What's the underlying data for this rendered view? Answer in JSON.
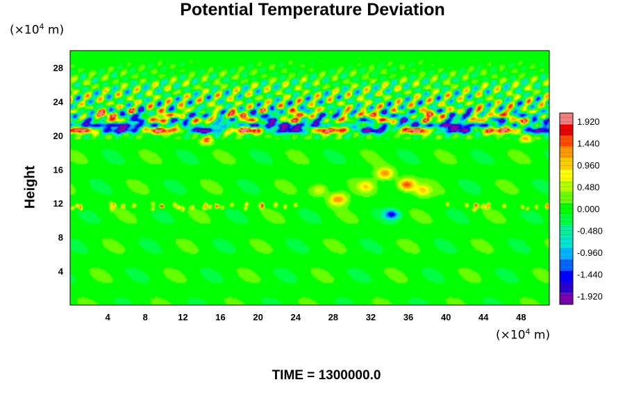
{
  "chart_data": {
    "type": "heatmap",
    "title": "Potential Temperature Deviation",
    "ylabel": "Height",
    "x_unit": {
      "prefix": "(×10",
      "exp": "4",
      "suffix": " m)"
    },
    "y_unit": {
      "prefix": "(×10",
      "exp": "4",
      "suffix": " m)"
    },
    "xlim": [
      0,
      51
    ],
    "ylim": [
      0,
      30
    ],
    "x_ticks": [
      4,
      8,
      12,
      16,
      20,
      24,
      28,
      32,
      36,
      40,
      44,
      48
    ],
    "y_ticks": [
      4,
      8,
      12,
      16,
      20,
      24,
      28
    ],
    "colorbar": {
      "range": [
        -2.1,
        2.1
      ],
      "tick_values": [
        1.92,
        1.44,
        0.96,
        0.48,
        0.0,
        -0.48,
        -0.96,
        -1.44,
        -1.92
      ],
      "tick_labels": [
        "1.920",
        "1.440",
        "0.960",
        "0.480",
        "0.000",
        "-0.480",
        "-0.960",
        "-1.440",
        "-1.920"
      ],
      "colors": [
        "#7a00b0",
        "#2a00cc",
        "#0000ff",
        "#0066ff",
        "#00b4ff",
        "#00e6d2",
        "#00f0a0",
        "#00ff44",
        "#00ff00",
        "#66ff00",
        "#b4ff00",
        "#ffff00",
        "#ffcc00",
        "#ff9900",
        "#ff4a00",
        "#ee0000",
        "#f08080"
      ]
    },
    "field_features": [
      {
        "kind": "background",
        "value": 0.0
      },
      {
        "kind": "upper_band",
        "y_range": [
          19.8,
          29
        ],
        "amplitude": 1.5
      },
      {
        "kind": "strong_layer",
        "y": 20.8,
        "amplitude": 2.0
      },
      {
        "kind": "convection",
        "x_center": 34,
        "y_range": [
          11,
          17
        ],
        "amplitude": 1.2
      },
      {
        "kind": "cold_spot",
        "x": 34.2,
        "y": 10.7,
        "value": -1.5
      },
      {
        "kind": "tropopause_dots",
        "y": 11.5,
        "value": 1.1
      }
    ],
    "time_label": "TIME = 1300000.0"
  }
}
